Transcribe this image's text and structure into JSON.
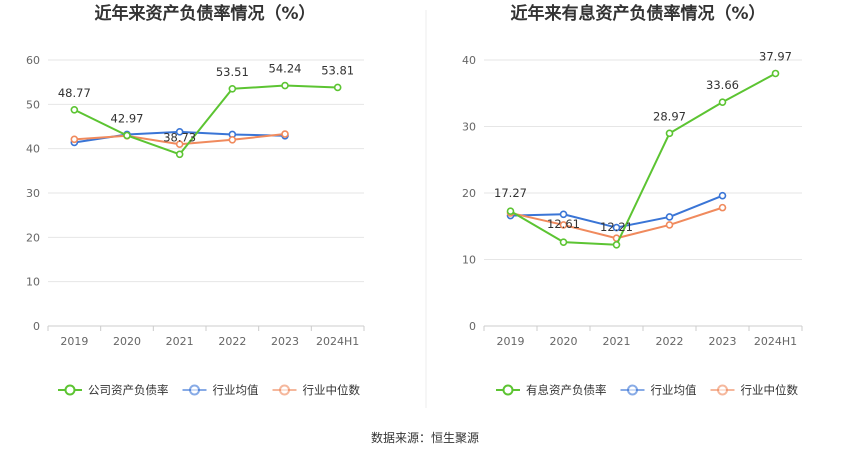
{
  "source": "数据来源：恒生聚源",
  "colors": {
    "primary": "#5cc432",
    "avg": "#3a75d6",
    "median": "#f08a5d",
    "grid": "#e6e6e6",
    "axis": "#cccccc"
  },
  "chart_data": [
    {
      "type": "line",
      "title": "近年来资产负债率情况（%）",
      "categories": [
        "2019",
        "2020",
        "2021",
        "2022",
        "2023",
        "2024H1"
      ],
      "ylim": [
        0,
        60
      ],
      "yticks": [
        0,
        10,
        20,
        30,
        40,
        50,
        60
      ],
      "grid": true,
      "legend_position": "bottom",
      "series": [
        {
          "name": "公司资产负债率",
          "color": "#5cc432",
          "values": [
            48.77,
            42.97,
            38.73,
            53.51,
            54.24,
            53.81
          ],
          "labels": [
            "48.77",
            "42.97",
            "38.73",
            "53.51",
            "54.24",
            "53.81"
          ]
        },
        {
          "name": "行业均值",
          "color": "#3a75d6",
          "values": [
            41.4,
            43.2,
            43.8,
            43.2,
            42.9,
            null
          ]
        },
        {
          "name": "行业中位数",
          "color": "#f08a5d",
          "values": [
            42.1,
            42.9,
            41.0,
            42.0,
            43.3,
            null
          ]
        }
      ]
    },
    {
      "type": "line",
      "title": "近年来有息资产负债率情况（%）",
      "categories": [
        "2019",
        "2020",
        "2021",
        "2022",
        "2023",
        "2024H1"
      ],
      "ylim": [
        0,
        40
      ],
      "yticks": [
        0,
        10,
        20,
        30,
        40
      ],
      "grid": true,
      "legend_position": "bottom",
      "series": [
        {
          "name": "有息资产负债率",
          "color": "#5cc432",
          "values": [
            17.27,
            12.61,
            12.21,
            28.97,
            33.66,
            37.97
          ],
          "labels": [
            "17.27",
            "12.61",
            "12.21",
            "28.97",
            "33.66",
            "37.97"
          ]
        },
        {
          "name": "行业均值",
          "color": "#3a75d6",
          "values": [
            16.6,
            16.8,
            14.8,
            16.4,
            19.6,
            null
          ]
        },
        {
          "name": "行业中位数",
          "color": "#f08a5d",
          "values": [
            17.0,
            15.2,
            13.2,
            15.2,
            17.8,
            null
          ]
        }
      ]
    }
  ]
}
